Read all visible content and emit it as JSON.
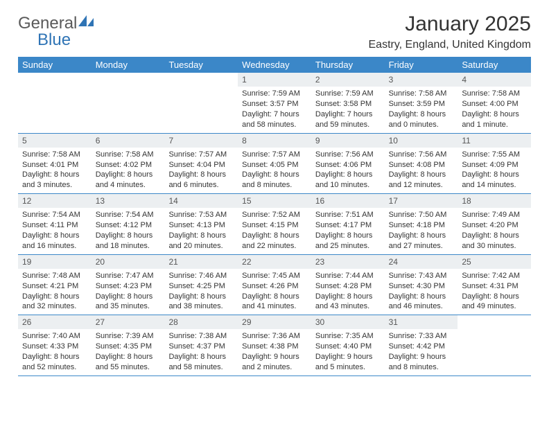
{
  "logo": {
    "word1": "General",
    "word2": "Blue"
  },
  "title": "January 2025",
  "location": "Eastry, England, United Kingdom",
  "colors": {
    "header_bg": "#3b87c8",
    "header_text": "#ffffff",
    "daynum_bg": "#eceff1",
    "rule": "#3b87c8",
    "logo_gray": "#5a5a5a",
    "logo_blue": "#2f74b5"
  },
  "day_names": [
    "Sunday",
    "Monday",
    "Tuesday",
    "Wednesday",
    "Thursday",
    "Friday",
    "Saturday"
  ],
  "weeks": [
    [
      null,
      null,
      null,
      {
        "n": "1",
        "sr": "Sunrise: 7:59 AM",
        "ss": "Sunset: 3:57 PM",
        "dl": "Daylight: 7 hours and 58 minutes."
      },
      {
        "n": "2",
        "sr": "Sunrise: 7:59 AM",
        "ss": "Sunset: 3:58 PM",
        "dl": "Daylight: 7 hours and 59 minutes."
      },
      {
        "n": "3",
        "sr": "Sunrise: 7:58 AM",
        "ss": "Sunset: 3:59 PM",
        "dl": "Daylight: 8 hours and 0 minutes."
      },
      {
        "n": "4",
        "sr": "Sunrise: 7:58 AM",
        "ss": "Sunset: 4:00 PM",
        "dl": "Daylight: 8 hours and 1 minute."
      }
    ],
    [
      {
        "n": "5",
        "sr": "Sunrise: 7:58 AM",
        "ss": "Sunset: 4:01 PM",
        "dl": "Daylight: 8 hours and 3 minutes."
      },
      {
        "n": "6",
        "sr": "Sunrise: 7:58 AM",
        "ss": "Sunset: 4:02 PM",
        "dl": "Daylight: 8 hours and 4 minutes."
      },
      {
        "n": "7",
        "sr": "Sunrise: 7:57 AM",
        "ss": "Sunset: 4:04 PM",
        "dl": "Daylight: 8 hours and 6 minutes."
      },
      {
        "n": "8",
        "sr": "Sunrise: 7:57 AM",
        "ss": "Sunset: 4:05 PM",
        "dl": "Daylight: 8 hours and 8 minutes."
      },
      {
        "n": "9",
        "sr": "Sunrise: 7:56 AM",
        "ss": "Sunset: 4:06 PM",
        "dl": "Daylight: 8 hours and 10 minutes."
      },
      {
        "n": "10",
        "sr": "Sunrise: 7:56 AM",
        "ss": "Sunset: 4:08 PM",
        "dl": "Daylight: 8 hours and 12 minutes."
      },
      {
        "n": "11",
        "sr": "Sunrise: 7:55 AM",
        "ss": "Sunset: 4:09 PM",
        "dl": "Daylight: 8 hours and 14 minutes."
      }
    ],
    [
      {
        "n": "12",
        "sr": "Sunrise: 7:54 AM",
        "ss": "Sunset: 4:11 PM",
        "dl": "Daylight: 8 hours and 16 minutes."
      },
      {
        "n": "13",
        "sr": "Sunrise: 7:54 AM",
        "ss": "Sunset: 4:12 PM",
        "dl": "Daylight: 8 hours and 18 minutes."
      },
      {
        "n": "14",
        "sr": "Sunrise: 7:53 AM",
        "ss": "Sunset: 4:13 PM",
        "dl": "Daylight: 8 hours and 20 minutes."
      },
      {
        "n": "15",
        "sr": "Sunrise: 7:52 AM",
        "ss": "Sunset: 4:15 PM",
        "dl": "Daylight: 8 hours and 22 minutes."
      },
      {
        "n": "16",
        "sr": "Sunrise: 7:51 AM",
        "ss": "Sunset: 4:17 PM",
        "dl": "Daylight: 8 hours and 25 minutes."
      },
      {
        "n": "17",
        "sr": "Sunrise: 7:50 AM",
        "ss": "Sunset: 4:18 PM",
        "dl": "Daylight: 8 hours and 27 minutes."
      },
      {
        "n": "18",
        "sr": "Sunrise: 7:49 AM",
        "ss": "Sunset: 4:20 PM",
        "dl": "Daylight: 8 hours and 30 minutes."
      }
    ],
    [
      {
        "n": "19",
        "sr": "Sunrise: 7:48 AM",
        "ss": "Sunset: 4:21 PM",
        "dl": "Daylight: 8 hours and 32 minutes."
      },
      {
        "n": "20",
        "sr": "Sunrise: 7:47 AM",
        "ss": "Sunset: 4:23 PM",
        "dl": "Daylight: 8 hours and 35 minutes."
      },
      {
        "n": "21",
        "sr": "Sunrise: 7:46 AM",
        "ss": "Sunset: 4:25 PM",
        "dl": "Daylight: 8 hours and 38 minutes."
      },
      {
        "n": "22",
        "sr": "Sunrise: 7:45 AM",
        "ss": "Sunset: 4:26 PM",
        "dl": "Daylight: 8 hours and 41 minutes."
      },
      {
        "n": "23",
        "sr": "Sunrise: 7:44 AM",
        "ss": "Sunset: 4:28 PM",
        "dl": "Daylight: 8 hours and 43 minutes."
      },
      {
        "n": "24",
        "sr": "Sunrise: 7:43 AM",
        "ss": "Sunset: 4:30 PM",
        "dl": "Daylight: 8 hours and 46 minutes."
      },
      {
        "n": "25",
        "sr": "Sunrise: 7:42 AM",
        "ss": "Sunset: 4:31 PM",
        "dl": "Daylight: 8 hours and 49 minutes."
      }
    ],
    [
      {
        "n": "26",
        "sr": "Sunrise: 7:40 AM",
        "ss": "Sunset: 4:33 PM",
        "dl": "Daylight: 8 hours and 52 minutes."
      },
      {
        "n": "27",
        "sr": "Sunrise: 7:39 AM",
        "ss": "Sunset: 4:35 PM",
        "dl": "Daylight: 8 hours and 55 minutes."
      },
      {
        "n": "28",
        "sr": "Sunrise: 7:38 AM",
        "ss": "Sunset: 4:37 PM",
        "dl": "Daylight: 8 hours and 58 minutes."
      },
      {
        "n": "29",
        "sr": "Sunrise: 7:36 AM",
        "ss": "Sunset: 4:38 PM",
        "dl": "Daylight: 9 hours and 2 minutes."
      },
      {
        "n": "30",
        "sr": "Sunrise: 7:35 AM",
        "ss": "Sunset: 4:40 PM",
        "dl": "Daylight: 9 hours and 5 minutes."
      },
      {
        "n": "31",
        "sr": "Sunrise: 7:33 AM",
        "ss": "Sunset: 4:42 PM",
        "dl": "Daylight: 9 hours and 8 minutes."
      },
      null
    ]
  ]
}
